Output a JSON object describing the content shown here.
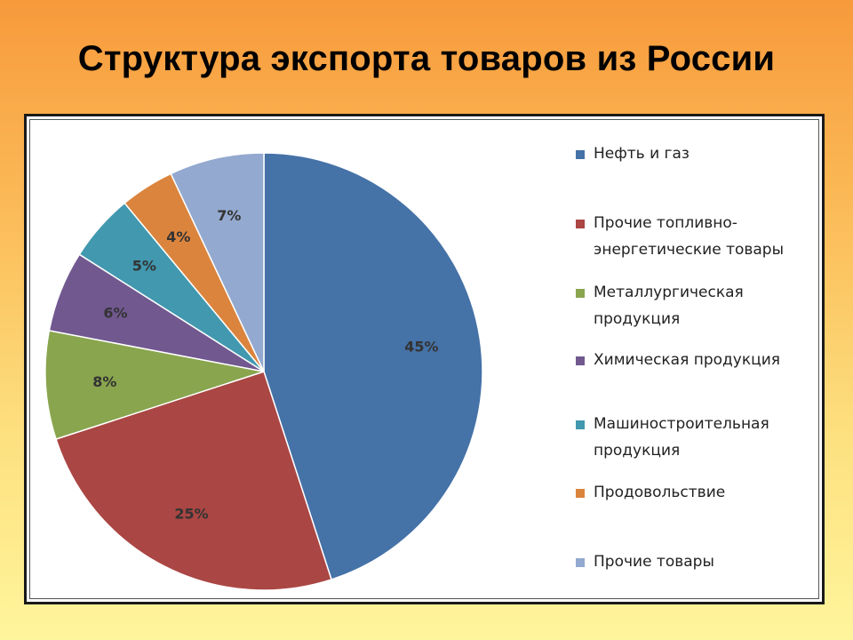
{
  "title": "Структура экспорта товаров из России",
  "chart_data": {
    "type": "pie",
    "start_angle_deg": 0,
    "direction": "clockwise",
    "legend_position": "right",
    "slices": [
      {
        "label": "Нефть и газ",
        "legend_label": "Нефть  и газ",
        "value": 45,
        "value_label": "45%",
        "color": "#4572a7"
      },
      {
        "label": "Прочие топливно-энергетические товары",
        "legend_label": "Прочие  топливно-\nэнергетические  товары",
        "value": 25,
        "value_label": "25%",
        "color": "#aa4643"
      },
      {
        "label": "Металлургическая продукция",
        "legend_label": "Металлургическая\nпродукция",
        "value": 8,
        "value_label": "8%",
        "color": "#89a54e"
      },
      {
        "label": "Химическая продукция",
        "legend_label": "Химическая продукция",
        "value": 6,
        "value_label": "6%",
        "color": "#71588f"
      },
      {
        "label": "Машиностроительная продукция",
        "legend_label": "Машиностроительная\nпродукция",
        "value": 5,
        "value_label": "5%",
        "color": "#4198af"
      },
      {
        "label": "Продовольствие",
        "legend_label": "Продовольствие",
        "value": 4,
        "value_label": "4%",
        "color": "#db843d"
      },
      {
        "label": "Прочие товары",
        "legend_label": "Прочие товары",
        "value": 7,
        "value_label": "7%",
        "color": "#93a9cf"
      }
    ]
  }
}
